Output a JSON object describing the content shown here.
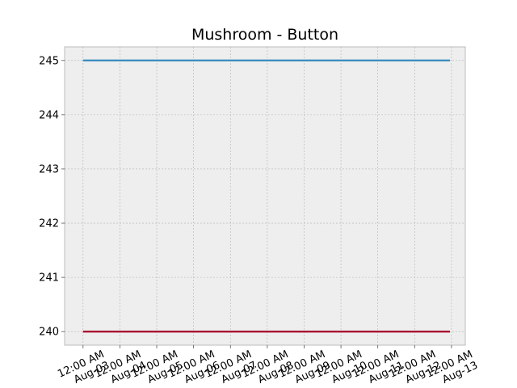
{
  "chart_data": {
    "type": "line",
    "title": "Mushroom - Button",
    "xlabel": "",
    "ylabel": "",
    "x": [
      "2019-08-03",
      "2019-08-04",
      "2019-08-05",
      "2019-08-06",
      "2019-08-07",
      "2019-08-08",
      "2019-08-09",
      "2019-08-10",
      "2019-08-11",
      "2019-08-12",
      "2019-08-13"
    ],
    "x_tick_labels": [
      "12:00 AM\nAug-03",
      "12:00 AM\nAug-04",
      "12:00 AM\nAug-05",
      "12:00 AM\nAug-06",
      "12:00 AM\nAug-07",
      "12:00 AM\nAug-08",
      "12:00 AM\nAug-09",
      "12:00 AM\nAug-10",
      "12:00 AM\nAug-11",
      "12:00 AM\nAug-12",
      "12:00 AM\nAug-13"
    ],
    "x_range": [
      "2019-08-02T12:00",
      "2019-08-13T09:00"
    ],
    "y_ticks": [
      240,
      241,
      242,
      243,
      244,
      245
    ],
    "ylim": [
      239.75,
      245.25
    ],
    "grid": true,
    "series": [
      {
        "color": "#348ABD",
        "x": [
          "2019-08-03T00:00",
          "2019-08-12T23:00"
        ],
        "values": [
          245,
          245
        ]
      },
      {
        "color": "#A60628",
        "x": [
          "2019-08-03T00:00",
          "2019-08-12T23:00"
        ],
        "values": [
          240,
          240
        ]
      }
    ]
  }
}
